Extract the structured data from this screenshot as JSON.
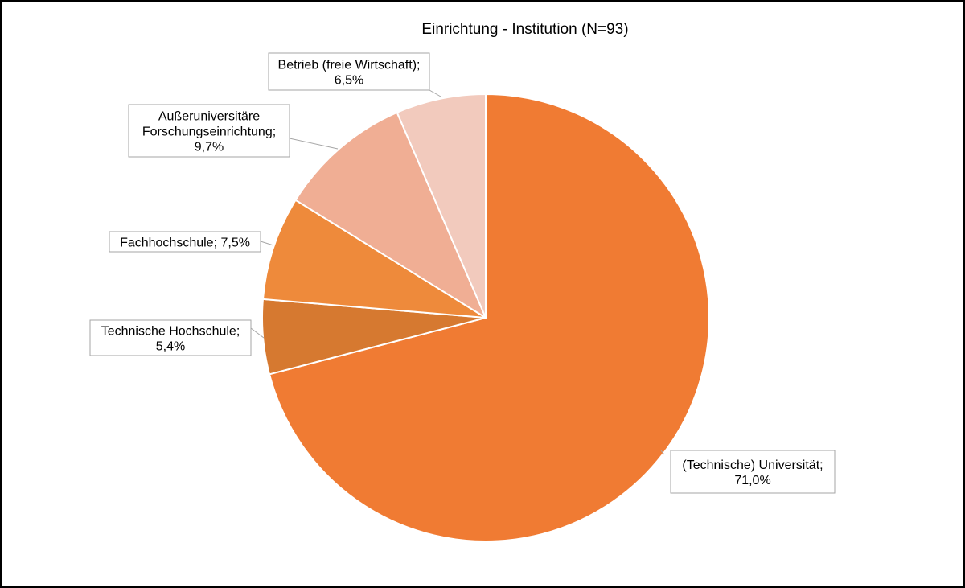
{
  "chart_data": {
    "type": "pie",
    "title": "Einrichtung - Institution (N=93)",
    "slices": [
      {
        "name": "(Technische) Universität",
        "value": 71.0,
        "value_label": "71,0%",
        "color": "#f07b33"
      },
      {
        "name": "Technische Hochschule",
        "value": 5.4,
        "value_label": "5,4%",
        "color": "#d67930"
      },
      {
        "name": "Fachhochschule",
        "value": 7.5,
        "value_label": "7,5%",
        "color": "#ee8a3b"
      },
      {
        "name": "Außeruniversitäre Forschungseinrichtung",
        "value": 9.7,
        "value_label": "9,7%",
        "color": "#f0ae94"
      },
      {
        "name": "Betrieb (freie Wirtschaft)",
        "value": 6.5,
        "value_label": "6,5%",
        "color": "#f2cabd"
      }
    ],
    "labels": [
      {
        "lines": [
          "(Technische)  Universität;",
          "71,0%"
        ]
      },
      {
        "lines": [
          "Technische  Hochschule;",
          "5,4%"
        ]
      },
      {
        "lines": [
          "Fachhochschule;  7,5%"
        ]
      },
      {
        "lines": [
          "Außeruniversitäre",
          "Forschungseinrichtung;",
          "9,7%"
        ]
      },
      {
        "lines": [
          "Betrieb (freie Wirtschaft);",
          "6,5%"
        ]
      }
    ],
    "legend": "none",
    "start": "12 o'clock, clockwise"
  }
}
